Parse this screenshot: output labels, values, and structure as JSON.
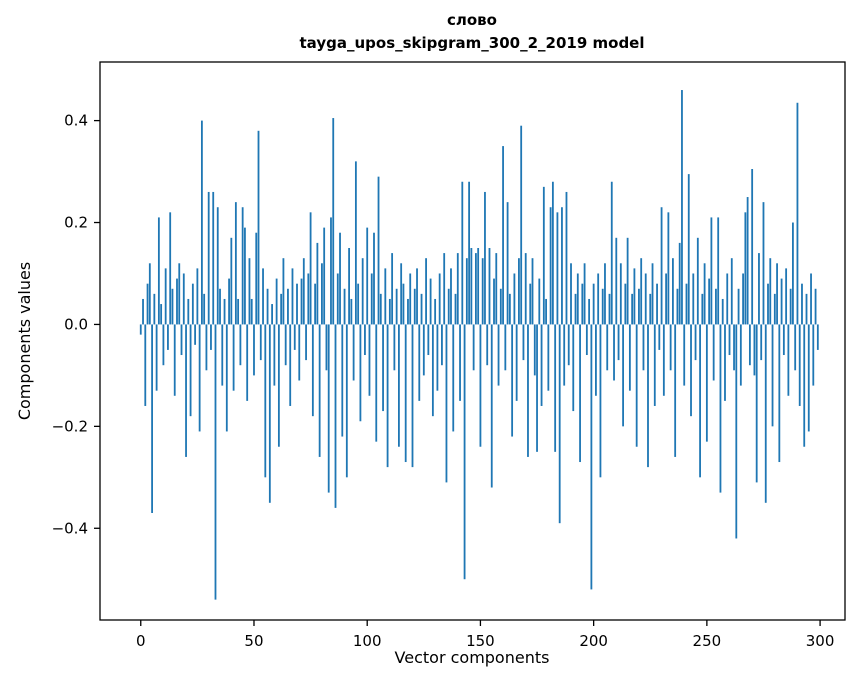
{
  "chart_data": {
    "type": "bar",
    "title": "слово",
    "subtitle": "tayga_upos_skipgram_300_2_2019 model",
    "xlabel": "Vector components",
    "ylabel": "Components values",
    "bar_color": "#1f77b4",
    "axis_color": "#000000",
    "background_color": "#ffffff",
    "n": 300,
    "xlim": [
      -18,
      311
    ],
    "ylim": [
      -0.58,
      0.515
    ],
    "xticks": [
      0,
      50,
      100,
      150,
      200,
      250,
      300
    ],
    "xtick_labels": [
      "0",
      "50",
      "100",
      "150",
      "200",
      "250",
      "300"
    ],
    "yticks": [
      -0.4,
      -0.2,
      0.0,
      0.2,
      0.4
    ],
    "ytick_labels": [
      "−0.4",
      "−0.2",
      "0.0",
      "0.2",
      "0.4"
    ],
    "grid": false,
    "legend": "none",
    "values": [
      -0.02,
      0.05,
      -0.16,
      0.08,
      0.12,
      -0.37,
      0.06,
      -0.13,
      0.21,
      0.04,
      -0.08,
      0.11,
      -0.05,
      0.22,
      0.07,
      -0.14,
      0.09,
      0.12,
      -0.06,
      0.1,
      -0.26,
      0.05,
      -0.18,
      0.08,
      -0.04,
      0.11,
      -0.21,
      0.4,
      0.06,
      -0.09,
      0.26,
      -0.05,
      0.26,
      -0.54,
      0.23,
      0.07,
      -0.12,
      0.05,
      -0.21,
      0.09,
      0.17,
      -0.13,
      0.24,
      0.05,
      -0.08,
      0.23,
      0.19,
      -0.15,
      0.13,
      0.05,
      -0.1,
      0.18,
      0.38,
      -0.07,
      0.11,
      -0.3,
      0.07,
      -0.35,
      0.04,
      -0.12,
      0.09,
      -0.24,
      0.06,
      0.13,
      -0.08,
      0.07,
      -0.16,
      0.11,
      -0.05,
      0.08,
      -0.11,
      0.09,
      0.13,
      -0.07,
      0.1,
      0.22,
      -0.18,
      0.08,
      0.16,
      -0.26,
      0.12,
      0.19,
      -0.09,
      -0.33,
      0.21,
      0.405,
      -0.36,
      0.1,
      0.18,
      -0.22,
      0.07,
      -0.3,
      0.15,
      0.05,
      -0.11,
      0.32,
      0.08,
      -0.19,
      0.13,
      -0.06,
      0.19,
      -0.14,
      0.1,
      0.18,
      -0.23,
      0.29,
      0.06,
      -0.17,
      0.11,
      -0.28,
      0.05,
      0.14,
      -0.09,
      0.07,
      -0.24,
      0.12,
      0.08,
      -0.27,
      0.05,
      0.1,
      -0.28,
      0.07,
      0.11,
      -0.15,
      0.06,
      -0.1,
      0.13,
      -0.06,
      0.09,
      -0.18,
      0.05,
      -0.13,
      0.1,
      -0.08,
      0.14,
      -0.31,
      0.07,
      0.11,
      -0.21,
      0.06,
      0.14,
      -0.15,
      0.28,
      -0.5,
      0.13,
      0.28,
      0.15,
      -0.09,
      0.14,
      0.15,
      -0.24,
      0.13,
      0.26,
      -0.08,
      0.15,
      -0.32,
      0.09,
      0.14,
      -0.12,
      0.07,
      0.35,
      -0.09,
      0.24,
      0.06,
      -0.22,
      0.1,
      -0.15,
      0.13,
      0.39,
      -0.07,
      0.14,
      -0.26,
      0.08,
      0.13,
      -0.1,
      -0.25,
      0.09,
      -0.16,
      0.27,
      0.05,
      -0.13,
      0.23,
      0.28,
      -0.25,
      0.22,
      -0.39,
      0.23,
      -0.12,
      0.26,
      -0.08,
      0.12,
      -0.17,
      0.06,
      0.1,
      -0.27,
      0.08,
      0.12,
      -0.06,
      0.05,
      -0.52,
      0.08,
      -0.14,
      0.1,
      -0.3,
      0.07,
      0.12,
      -0.09,
      0.06,
      0.28,
      -0.11,
      0.17,
      -0.07,
      0.12,
      -0.2,
      0.08,
      0.17,
      -0.13,
      0.06,
      0.11,
      -0.24,
      0.07,
      0.13,
      -0.09,
      0.1,
      -0.28,
      0.06,
      0.12,
      -0.16,
      0.08,
      -0.05,
      0.23,
      -0.14,
      0.1,
      0.22,
      -0.09,
      0.13,
      -0.26,
      0.07,
      0.16,
      0.46,
      -0.12,
      0.08,
      0.295,
      -0.18,
      0.1,
      -0.07,
      0.17,
      -0.3,
      0.06,
      0.12,
      -0.23,
      0.09,
      0.21,
      -0.11,
      0.07,
      0.21,
      -0.33,
      0.05,
      -0.15,
      0.1,
      -0.06,
      0.13,
      -0.09,
      -0.42,
      0.07,
      -0.12,
      0.1,
      0.22,
      0.25,
      -0.08,
      0.305,
      -0.1,
      -0.31,
      0.14,
      -0.07,
      0.24,
      -0.35,
      0.08,
      0.13,
      -0.2,
      0.06,
      0.12,
      -0.27,
      0.09,
      -0.06,
      0.11,
      -0.14,
      0.07,
      0.2,
      -0.09,
      0.435,
      -0.16,
      0.08,
      -0.24,
      0.06,
      -0.21,
      0.1,
      -0.12,
      0.07,
      -0.05
    ]
  }
}
